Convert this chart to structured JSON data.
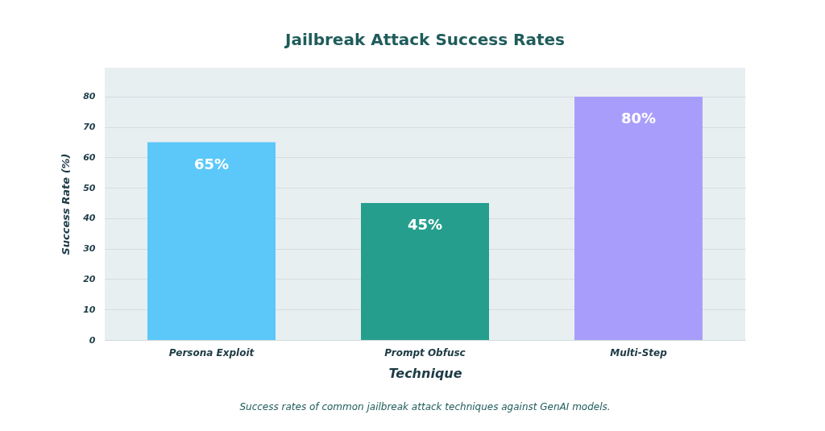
{
  "chart_data": {
    "type": "bar",
    "title": "Jailbreak Attack Success Rates",
    "xlabel": "Technique",
    "ylabel": "Success Rate (%)",
    "categories": [
      "Persona Exploit",
      "Prompt Obfusc",
      "Multi-Step"
    ],
    "values": [
      65,
      45,
      80
    ],
    "colors": [
      "#5bc8f9",
      "#269e8d",
      "#a99dfb"
    ],
    "value_labels": [
      "65%",
      "45%",
      "80%"
    ],
    "ylim": [
      0,
      89.5
    ],
    "yticks": [
      0,
      10,
      20,
      30,
      40,
      50,
      60,
      70,
      80
    ],
    "grid": "y",
    "legend": false,
    "annotations": [
      "Success rates of common jailbreak attack techniques against GenAI models."
    ]
  }
}
